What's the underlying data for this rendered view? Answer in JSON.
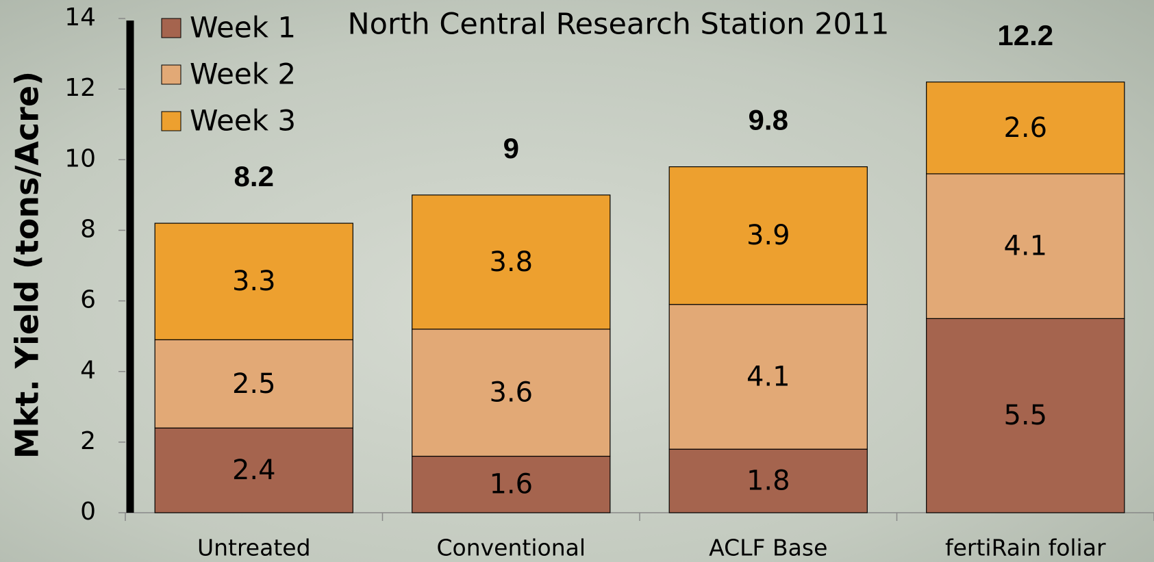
{
  "chart_data": {
    "type": "stacked_bar",
    "title": "North Central Research Station 2011",
    "y_label": "Mkt. Yield (tons/Acre)",
    "categories": [
      "Untreated",
      "Conventional",
      "ACLF Base",
      "fertiRain foliar"
    ],
    "series": [
      {
        "name": "Week 1",
        "color": "#a5644e",
        "values": [
          2.4,
          1.6,
          1.8,
          5.5
        ]
      },
      {
        "name": "Week 2",
        "color": "#e2a976",
        "values": [
          2.5,
          3.6,
          4.1,
          4.1
        ]
      },
      {
        "name": "Week 3",
        "color": "#eda02f",
        "values": [
          3.3,
          3.8,
          3.9,
          2.6
        ]
      }
    ],
    "totals": [
      8.2,
      9,
      9.8,
      12.2
    ],
    "ylim": [
      0,
      14
    ],
    "yticks": [
      0,
      2,
      4,
      6,
      8,
      10,
      12,
      14
    ],
    "legend": "top-left",
    "grid": false
  }
}
